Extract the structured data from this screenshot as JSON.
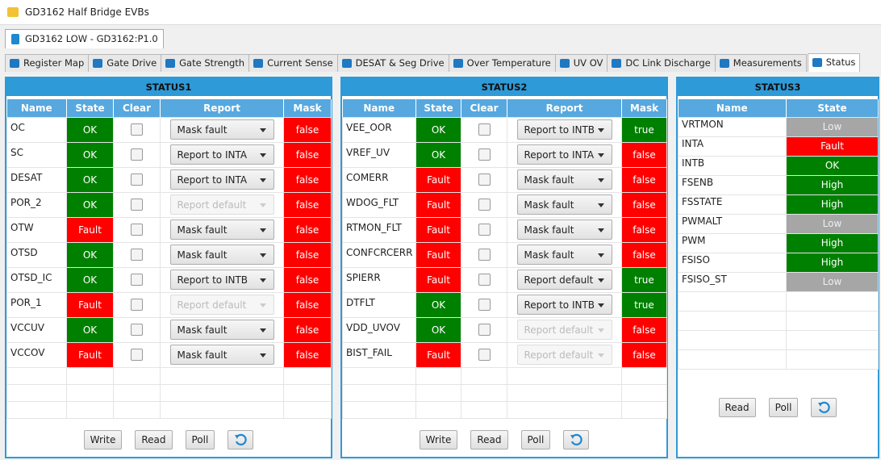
{
  "window": {
    "title": "GD3162 Half Bridge EVBs"
  },
  "device_tab": "GD3162 LOW - GD3162:P1.0",
  "tabs": [
    "Register Map",
    "Gate Drive",
    "Gate Strength",
    "Current Sense",
    "DESAT & Seg Drive",
    "Over Temperature",
    "UV OV",
    "DC Link Discharge",
    "Measurements",
    "Status"
  ],
  "active_tab": 9,
  "panels": [
    {
      "title": "STATUS1",
      "columns": [
        "Name",
        "State",
        "Clear",
        "Report",
        "Mask"
      ],
      "rows": [
        {
          "name": "OC",
          "state": "OK",
          "state_color": "#008000",
          "report": "Mask fault",
          "report_enabled": true,
          "mask": "false",
          "mask_color": "#ff0000"
        },
        {
          "name": "SC",
          "state": "OK",
          "state_color": "#008000",
          "report": "Report to INTA",
          "report_enabled": true,
          "mask": "false",
          "mask_color": "#ff0000"
        },
        {
          "name": "DESAT",
          "state": "OK",
          "state_color": "#008000",
          "report": "Report to INTA",
          "report_enabled": true,
          "mask": "false",
          "mask_color": "#ff0000"
        },
        {
          "name": "POR_2",
          "state": "OK",
          "state_color": "#008000",
          "report": "Report default",
          "report_enabled": false,
          "mask": "false",
          "mask_color": "#ff0000"
        },
        {
          "name": "OTW",
          "state": "Fault",
          "state_color": "#ff0000",
          "report": "Mask fault",
          "report_enabled": true,
          "mask": "false",
          "mask_color": "#ff0000"
        },
        {
          "name": "OTSD",
          "state": "OK",
          "state_color": "#008000",
          "report": "Mask fault",
          "report_enabled": true,
          "mask": "false",
          "mask_color": "#ff0000"
        },
        {
          "name": "OTSD_IC",
          "state": "OK",
          "state_color": "#008000",
          "report": "Report to INTB",
          "report_enabled": true,
          "mask": "false",
          "mask_color": "#ff0000"
        },
        {
          "name": "POR_1",
          "state": "Fault",
          "state_color": "#ff0000",
          "report": "Report default",
          "report_enabled": false,
          "mask": "false",
          "mask_color": "#ff0000"
        },
        {
          "name": "VCCUV",
          "state": "OK",
          "state_color": "#008000",
          "report": "Mask fault",
          "report_enabled": true,
          "mask": "false",
          "mask_color": "#ff0000"
        },
        {
          "name": "VCCOV",
          "state": "Fault",
          "state_color": "#ff0000",
          "report": "Mask fault",
          "report_enabled": true,
          "mask": "false",
          "mask_color": "#ff0000"
        }
      ],
      "buttons": [
        "Write",
        "Read",
        "Poll"
      ]
    },
    {
      "title": "STATUS2",
      "columns": [
        "Name",
        "State",
        "Clear",
        "Report",
        "Mask"
      ],
      "rows": [
        {
          "name": "VEE_OOR",
          "state": "OK",
          "state_color": "#008000",
          "report": "Report to INTB",
          "report_enabled": true,
          "mask": "true",
          "mask_color": "#008000"
        },
        {
          "name": "VREF_UV",
          "state": "OK",
          "state_color": "#008000",
          "report": "Report to INTA",
          "report_enabled": true,
          "mask": "false",
          "mask_color": "#ff0000"
        },
        {
          "name": "COMERR",
          "state": "Fault",
          "state_color": "#ff0000",
          "report": "Mask fault",
          "report_enabled": true,
          "mask": "false",
          "mask_color": "#ff0000"
        },
        {
          "name": "WDOG_FLT",
          "state": "Fault",
          "state_color": "#ff0000",
          "report": "Mask fault",
          "report_enabled": true,
          "mask": "false",
          "mask_color": "#ff0000"
        },
        {
          "name": "RTMON_FLT",
          "state": "Fault",
          "state_color": "#ff0000",
          "report": "Mask fault",
          "report_enabled": true,
          "mask": "false",
          "mask_color": "#ff0000"
        },
        {
          "name": "CONFCRCERR",
          "state": "Fault",
          "state_color": "#ff0000",
          "report": "Mask fault",
          "report_enabled": true,
          "mask": "false",
          "mask_color": "#ff0000"
        },
        {
          "name": "SPIERR",
          "state": "Fault",
          "state_color": "#ff0000",
          "report": "Report default",
          "report_enabled": true,
          "mask": "true",
          "mask_color": "#008000"
        },
        {
          "name": "DTFLT",
          "state": "OK",
          "state_color": "#008000",
          "report": "Report to INTB",
          "report_enabled": true,
          "mask": "true",
          "mask_color": "#008000"
        },
        {
          "name": "VDD_UVOV",
          "state": "OK",
          "state_color": "#008000",
          "report": "Report default",
          "report_enabled": false,
          "mask": "false",
          "mask_color": "#ff0000"
        },
        {
          "name": "BIST_FAIL",
          "state": "Fault",
          "state_color": "#ff0000",
          "report": "Report default",
          "report_enabled": false,
          "mask": "false",
          "mask_color": "#ff0000"
        }
      ],
      "buttons": [
        "Write",
        "Read",
        "Poll"
      ]
    },
    {
      "title": "STATUS3",
      "columns": [
        "Name",
        "State"
      ],
      "rows": [
        {
          "name": "VRTMON",
          "state": "Low",
          "state_color": "#a6a6a6"
        },
        {
          "name": "INTA",
          "state": "Fault",
          "state_color": "#ff0000"
        },
        {
          "name": "INTB",
          "state": "OK",
          "state_color": "#008000"
        },
        {
          "name": "FSENB",
          "state": "High",
          "state_color": "#008000"
        },
        {
          "name": "FSSTATE",
          "state": "High",
          "state_color": "#008000"
        },
        {
          "name": "PWMALT",
          "state": "Low",
          "state_color": "#a6a6a6"
        },
        {
          "name": "PWM",
          "state": "High",
          "state_color": "#008000"
        },
        {
          "name": "FSISO",
          "state": "High",
          "state_color": "#008000"
        },
        {
          "name": "FSISO_ST",
          "state": "Low",
          "state_color": "#a6a6a6"
        }
      ],
      "buttons": [
        "Read",
        "Poll"
      ]
    }
  ]
}
